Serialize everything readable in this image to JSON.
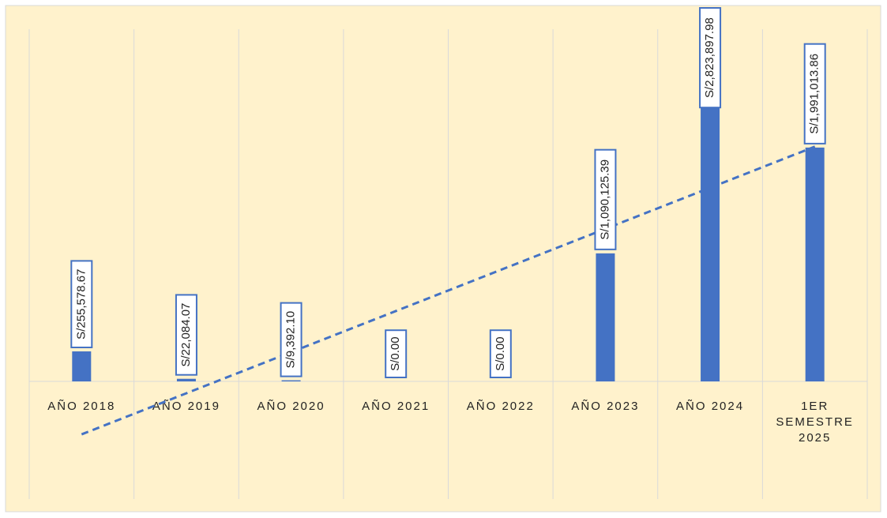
{
  "chart_data": {
    "type": "bar",
    "categories": [
      "AÑO 2018",
      "AÑO 2019",
      "AÑO 2020",
      "AÑO 2021",
      "AÑO 2022",
      "AÑO 2023",
      "AÑO 2024",
      "1ER SEMESTRE 2025"
    ],
    "values": [
      255578.67,
      22084.07,
      9392.1,
      0,
      0,
      1090125.39,
      2823897.98,
      1991013.86
    ],
    "value_labels": [
      "S/255,578.67",
      "S/22,084.07",
      "S/9,392.10",
      "S/0.00",
      "S/0.00",
      "S/1,090,125.39",
      "S/2,823,897.98",
      "S/1,991,013.86"
    ],
    "color": "#4472c4",
    "trendline": "linear",
    "grid": true
  }
}
